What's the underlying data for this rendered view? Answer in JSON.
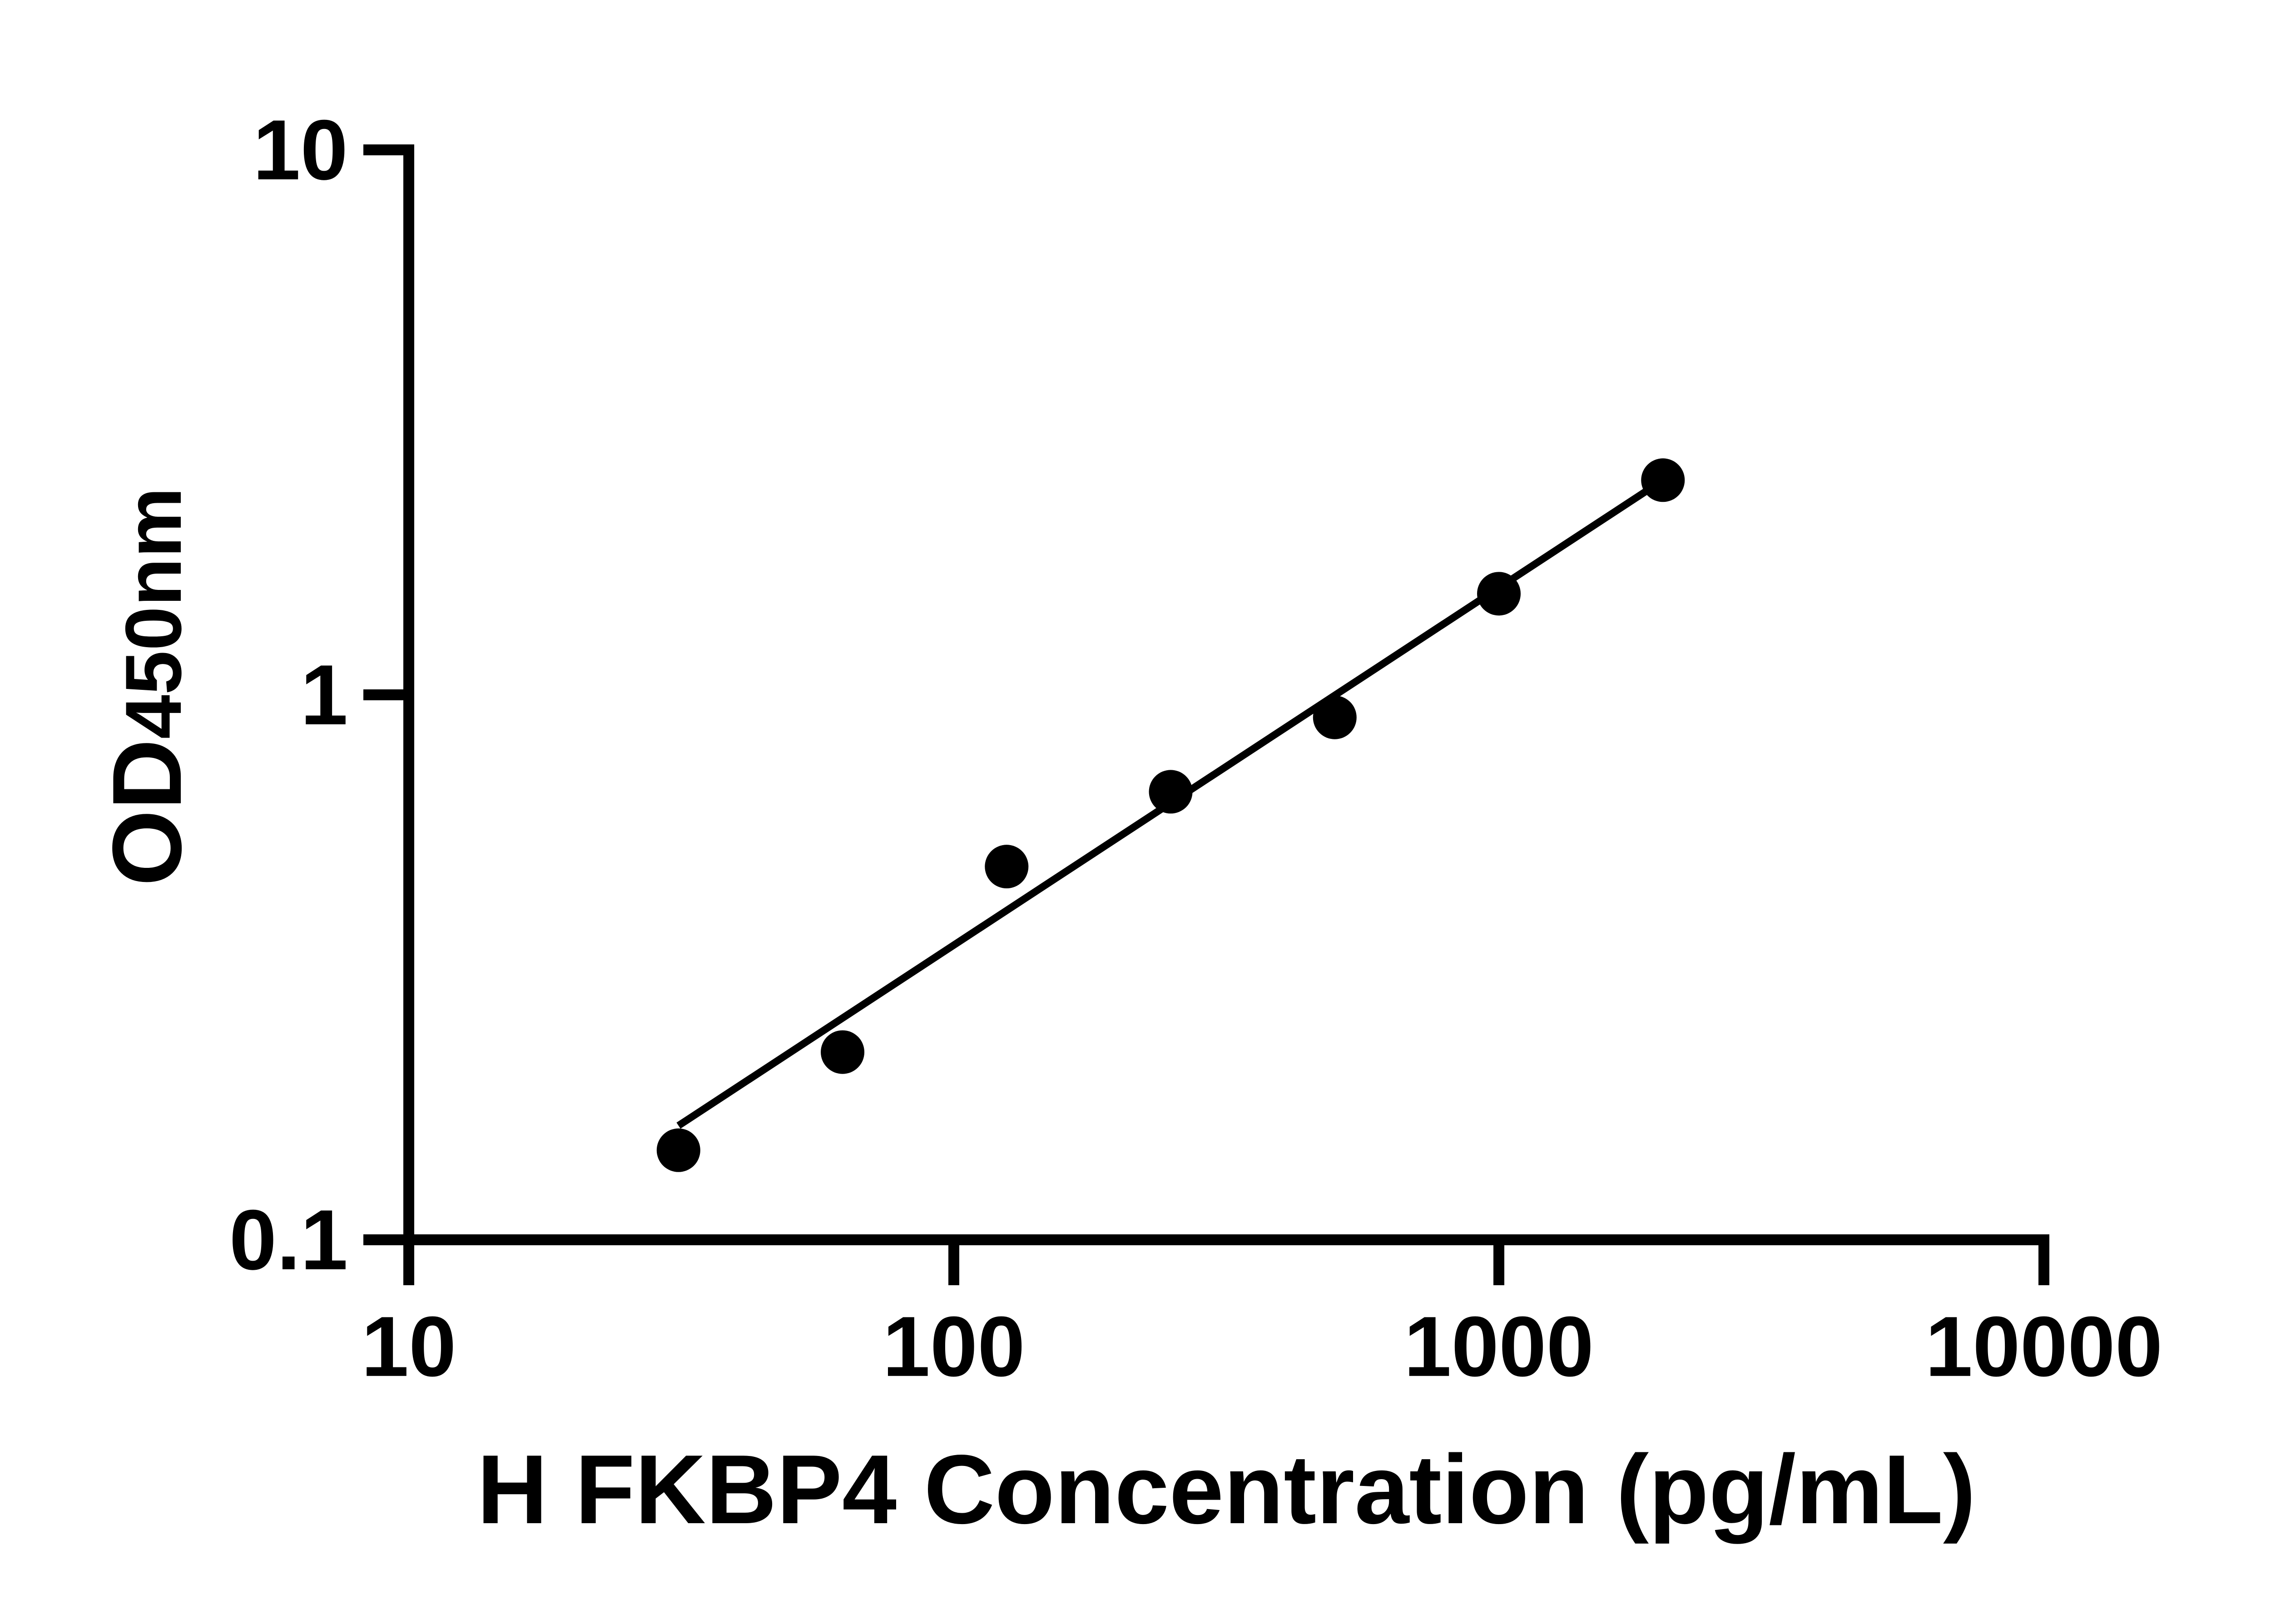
{
  "figure": {
    "background_color": "#ffffff",
    "description": "ELISA standard curve, log-log scatter plot with power fit line"
  },
  "chart_data": {
    "type": "scatter",
    "title": "",
    "xlabel": "H FKBP4 Concentration (pg/mL)",
    "ylabel_main": "OD",
    "ylabel_sub": "450nm",
    "x_scale": "log",
    "y_scale": "log",
    "xlim": [
      10,
      10000
    ],
    "ylim": [
      0.1,
      10
    ],
    "x_ticks": [
      {
        "value": 10,
        "label": "10"
      },
      {
        "value": 100,
        "label": "100"
      },
      {
        "value": 1000,
        "label": "1000"
      },
      {
        "value": 10000,
        "label": "10000"
      }
    ],
    "y_ticks": [
      {
        "value": 0.1,
        "label": "0.1"
      },
      {
        "value": 1,
        "label": "1"
      },
      {
        "value": 10,
        "label": "10"
      }
    ],
    "grid": false,
    "legend_position": "none",
    "series": [
      {
        "name": "standard-curve-points",
        "marker": "circle",
        "color": "#000000",
        "x": [
          31.25,
          62.5,
          125,
          250,
          500,
          1000,
          2000
        ],
        "y": [
          0.146,
          0.221,
          0.484,
          0.664,
          0.909,
          1.533,
          2.477
        ]
      }
    ],
    "fit_line": {
      "name": "power-fit-line",
      "color": "#000000",
      "x1": 31.25,
      "y1": 0.162,
      "x2": 2000,
      "y2": 2.477
    },
    "axis_color": "#000000"
  }
}
